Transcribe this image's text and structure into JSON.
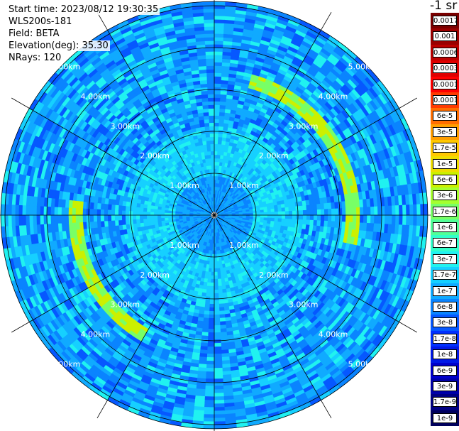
{
  "info": {
    "start_time": "Start time: 2023/08/12 19:30:35",
    "device": "WLS200s-181",
    "field": "Field: BETA",
    "elevation": "Elevation(deg): 35.30",
    "nrays": "NRays: 120"
  },
  "unit_label": "-1 sr",
  "chart_data": {
    "type": "heatmap",
    "projection": "polar (PPI scan)",
    "field": "BETA",
    "elevation_deg": 35.3,
    "nrays": 120,
    "range_rings_km": [
      1,
      2,
      3,
      4,
      5
    ],
    "range_ring_labels": [
      "1.00km",
      "2.00km",
      "3.00km",
      "4.00km",
      "5.00km"
    ],
    "radial_spokes_deg": [
      0,
      30,
      60,
      90,
      120,
      150,
      180,
      210,
      240,
      270,
      300,
      330
    ],
    "color_scale": {
      "labels": [
        "0.0017",
        "0.001",
        "0.0006",
        "0.0003",
        "0.00017",
        "0.0001",
        "6e-5",
        "3e-5",
        "1.7e-5",
        "1e-5",
        "6e-6",
        "3e-6",
        "1.7e-6",
        "1e-6",
        "6e-7",
        "3e-7",
        "1.7e-7",
        "1e-7",
        "6e-8",
        "3e-8",
        "1.7e-8",
        "1e-8",
        "6e-9",
        "3e-9",
        "1.7e-9",
        "1e-9"
      ],
      "colors": [
        "#7a0000",
        "#9a0000",
        "#bb0000",
        "#de0000",
        "#ff0000",
        "#ff3a00",
        "#ff6e00",
        "#ff9e00",
        "#ffc800",
        "#eedd00",
        "#ccf000",
        "#a4ff30",
        "#78ff66",
        "#52ff98",
        "#32ffca",
        "#20f2f0",
        "#16d0ff",
        "#10aaff",
        "#0a84ff",
        "#0658ff",
        "#0030ff",
        "#0018e6",
        "#0000cc",
        "#0000a8",
        "#000082",
        "#00005c"
      ]
    },
    "features": [
      {
        "description": "enhanced backscatter arc",
        "range_km_from": 3.1,
        "range_km_to": 3.4,
        "azimuth_deg_from": 15,
        "azimuth_deg_to": 100,
        "value_level": "1e-6"
      },
      {
        "description": "enhanced backscatter arc",
        "range_km_from": 3.1,
        "range_km_to": 3.4,
        "azimuth_deg_from": 210,
        "azimuth_deg_to": 275,
        "value_level": "1.7e-6"
      }
    ]
  }
}
